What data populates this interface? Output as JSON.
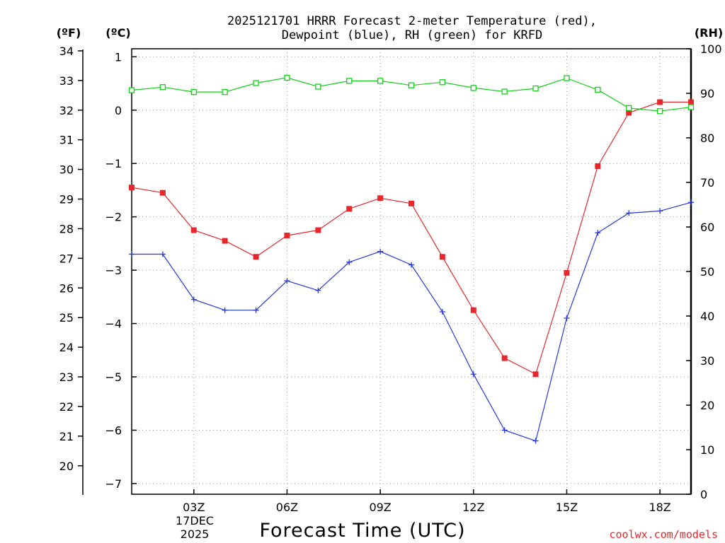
{
  "chart_data": {
    "type": "line",
    "title": [
      "2025121701 HRRR Forecast 2-meter Temperature (red),",
      "Dewpoint (blue), RH (green) for KRFD"
    ],
    "xlabel": "Forecast Time (UTC)",
    "date_label": [
      "17DEC",
      "2025"
    ],
    "credit": "coolwx.com/models",
    "units": {
      "f": "(ºF)",
      "c": "(ºC)",
      "rh": "(RH)"
    },
    "x_range": [
      1,
      19
    ],
    "x_ticks": [
      {
        "hour": 3,
        "label": "03Z"
      },
      {
        "hour": 6,
        "label": "06Z"
      },
      {
        "hour": 9,
        "label": "09Z"
      },
      {
        "hour": 12,
        "label": "12Z"
      },
      {
        "hour": 15,
        "label": "15Z"
      },
      {
        "hour": 18,
        "label": "18Z"
      }
    ],
    "c_axis": {
      "range": [
        -7.2,
        1.15
      ],
      "ticks": [
        1,
        0,
        -1,
        -2,
        -3,
        -4,
        -5,
        -6,
        -7
      ],
      "labels": [
        "1",
        "0",
        "−1",
        "−2",
        "−3",
        "−4",
        "−5",
        "−6",
        "−7"
      ]
    },
    "f_axis": {
      "ticks": [
        34,
        33,
        32,
        31,
        30,
        29,
        28,
        27,
        26,
        25,
        24,
        23,
        22,
        21,
        20
      ],
      "labels": [
        "34",
        "33",
        "32",
        "31",
        "30",
        "29",
        "28",
        "27",
        "26",
        "25",
        "24",
        "23",
        "22",
        "21",
        "20"
      ]
    },
    "rh_axis": {
      "range": [
        0,
        100
      ],
      "ticks": [
        100,
        90,
        80,
        70,
        60,
        50,
        40,
        30,
        20,
        10,
        0
      ],
      "labels": [
        "100",
        "90",
        "80",
        "70",
        "60",
        "50",
        "40",
        "30",
        "20",
        "10",
        "0"
      ]
    },
    "x": [
      1,
      2,
      3,
      4,
      5,
      6,
      7,
      8,
      9,
      10,
      11,
      12,
      13,
      14,
      15,
      16,
      17,
      18,
      19
    ],
    "series": [
      {
        "name": "Temperature",
        "color": "#e8272c",
        "marker": "filled-square",
        "axis": "c",
        "values": [
          -1.45,
          -1.55,
          -2.25,
          -2.45,
          -2.75,
          -2.35,
          -2.25,
          -1.85,
          -1.65,
          -1.75,
          -2.75,
          -3.75,
          -4.65,
          -4.95,
          -3.05,
          -1.05,
          -0.05,
          0.15,
          0.15
        ]
      },
      {
        "name": "Dewpoint",
        "color": "#2538e0",
        "marker": "plus",
        "axis": "c",
        "values": [
          -2.7,
          -2.7,
          -3.55,
          -3.75,
          -3.75,
          -3.2,
          -3.38,
          -2.85,
          -2.65,
          -2.9,
          -3.78,
          -4.95,
          -6.0,
          -6.2,
          -3.9,
          -2.3,
          -1.93,
          -1.89,
          -1.73
        ]
      },
      {
        "name": "RH",
        "color": "#10d018",
        "marker": "open-square",
        "axis": "rh",
        "values": [
          90.7,
          91.4,
          90.3,
          90.3,
          92.3,
          93.5,
          91.5,
          92.8,
          92.8,
          91.8,
          92.5,
          91.2,
          90.4,
          91.1,
          93.4,
          90.8,
          86.7,
          86.0,
          86.9
        ]
      }
    ]
  }
}
